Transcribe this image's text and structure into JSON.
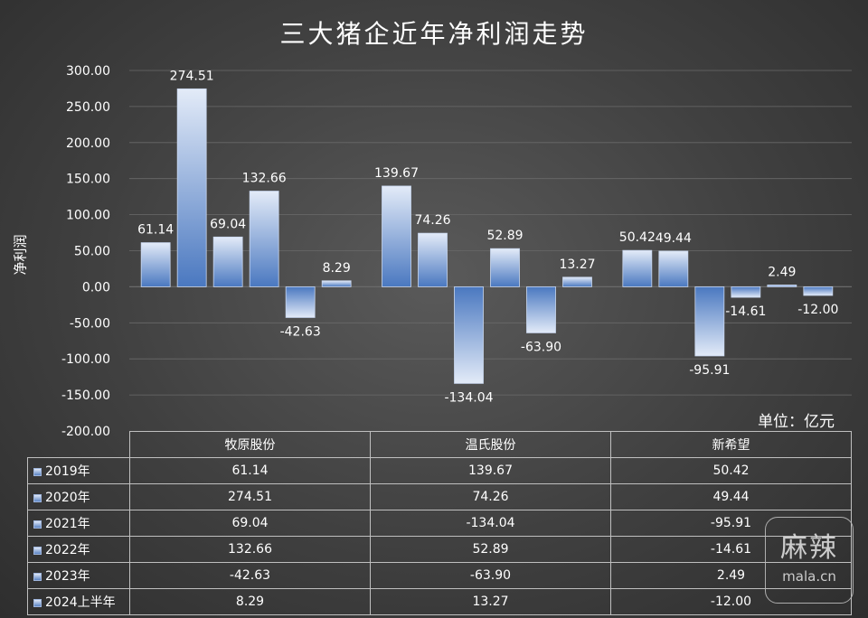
{
  "chart_data": {
    "type": "bar",
    "title": "三大猪企近年净利润走势",
    "ylabel": "净利润",
    "unit_label": "单位：亿元",
    "ylim": [
      -200,
      300
    ],
    "y_ticks": [
      "300.00",
      "250.00",
      "200.00",
      "150.00",
      "100.00",
      "50.00",
      "0.00",
      "-50.00",
      "-100.00",
      "-150.00",
      "-200.00"
    ],
    "y_tick_values": [
      300,
      250,
      200,
      150,
      100,
      50,
      0,
      -50,
      -100,
      -150,
      -200
    ],
    "categories": [
      "牧原股份",
      "温氏股份",
      "新希望"
    ],
    "series": [
      {
        "name": "2019年",
        "values": [
          61.14,
          139.67,
          50.42
        ]
      },
      {
        "name": "2020年",
        "values": [
          274.51,
          74.26,
          49.44
        ]
      },
      {
        "name": "2021年",
        "values": [
          69.04,
          -134.04,
          -95.91
        ]
      },
      {
        "name": "2022年",
        "values": [
          132.66,
          52.89,
          -14.61
        ]
      },
      {
        "name": "2023年",
        "values": [
          -42.63,
          -63.9,
          2.49
        ]
      },
      {
        "name": "2024上半年",
        "values": [
          8.29,
          13.27,
          -12.0
        ]
      }
    ],
    "data_labels": [
      [
        "61.14",
        "139.67",
        "50.42"
      ],
      [
        "274.51",
        "74.26",
        "49.44"
      ],
      [
        "69.04",
        "-134.04",
        "-95.91"
      ],
      [
        "132.66",
        "52.89",
        "-14.61"
      ],
      [
        "-42.63",
        "-63.90",
        "2.49"
      ],
      [
        "8.29",
        "13.27",
        "-12.00"
      ]
    ],
    "grid": true,
    "legend_position": "bottom-table"
  },
  "table": {
    "rows": [
      {
        "label": "2019年",
        "cells": [
          "61.14",
          "139.67",
          "50.42"
        ]
      },
      {
        "label": "2020年",
        "cells": [
          "274.51",
          "74.26",
          "49.44"
        ]
      },
      {
        "label": "2021年",
        "cells": [
          "69.04",
          "-134.04",
          "-95.91"
        ]
      },
      {
        "label": "2022年",
        "cells": [
          "132.66",
          "52.89",
          "-14.61"
        ]
      },
      {
        "label": "2023年",
        "cells": [
          "-42.63",
          "-63.90",
          "2.49"
        ]
      },
      {
        "label": "2024上半年",
        "cells": [
          "8.29",
          "13.27",
          "-12.00"
        ]
      }
    ]
  },
  "watermark": {
    "big": "麻辣",
    "small": "mala.cn"
  },
  "colors": {
    "bar_top": "#dce6f6",
    "bar_bottom": "#4a78c0",
    "grid": "#6a6a6a"
  }
}
